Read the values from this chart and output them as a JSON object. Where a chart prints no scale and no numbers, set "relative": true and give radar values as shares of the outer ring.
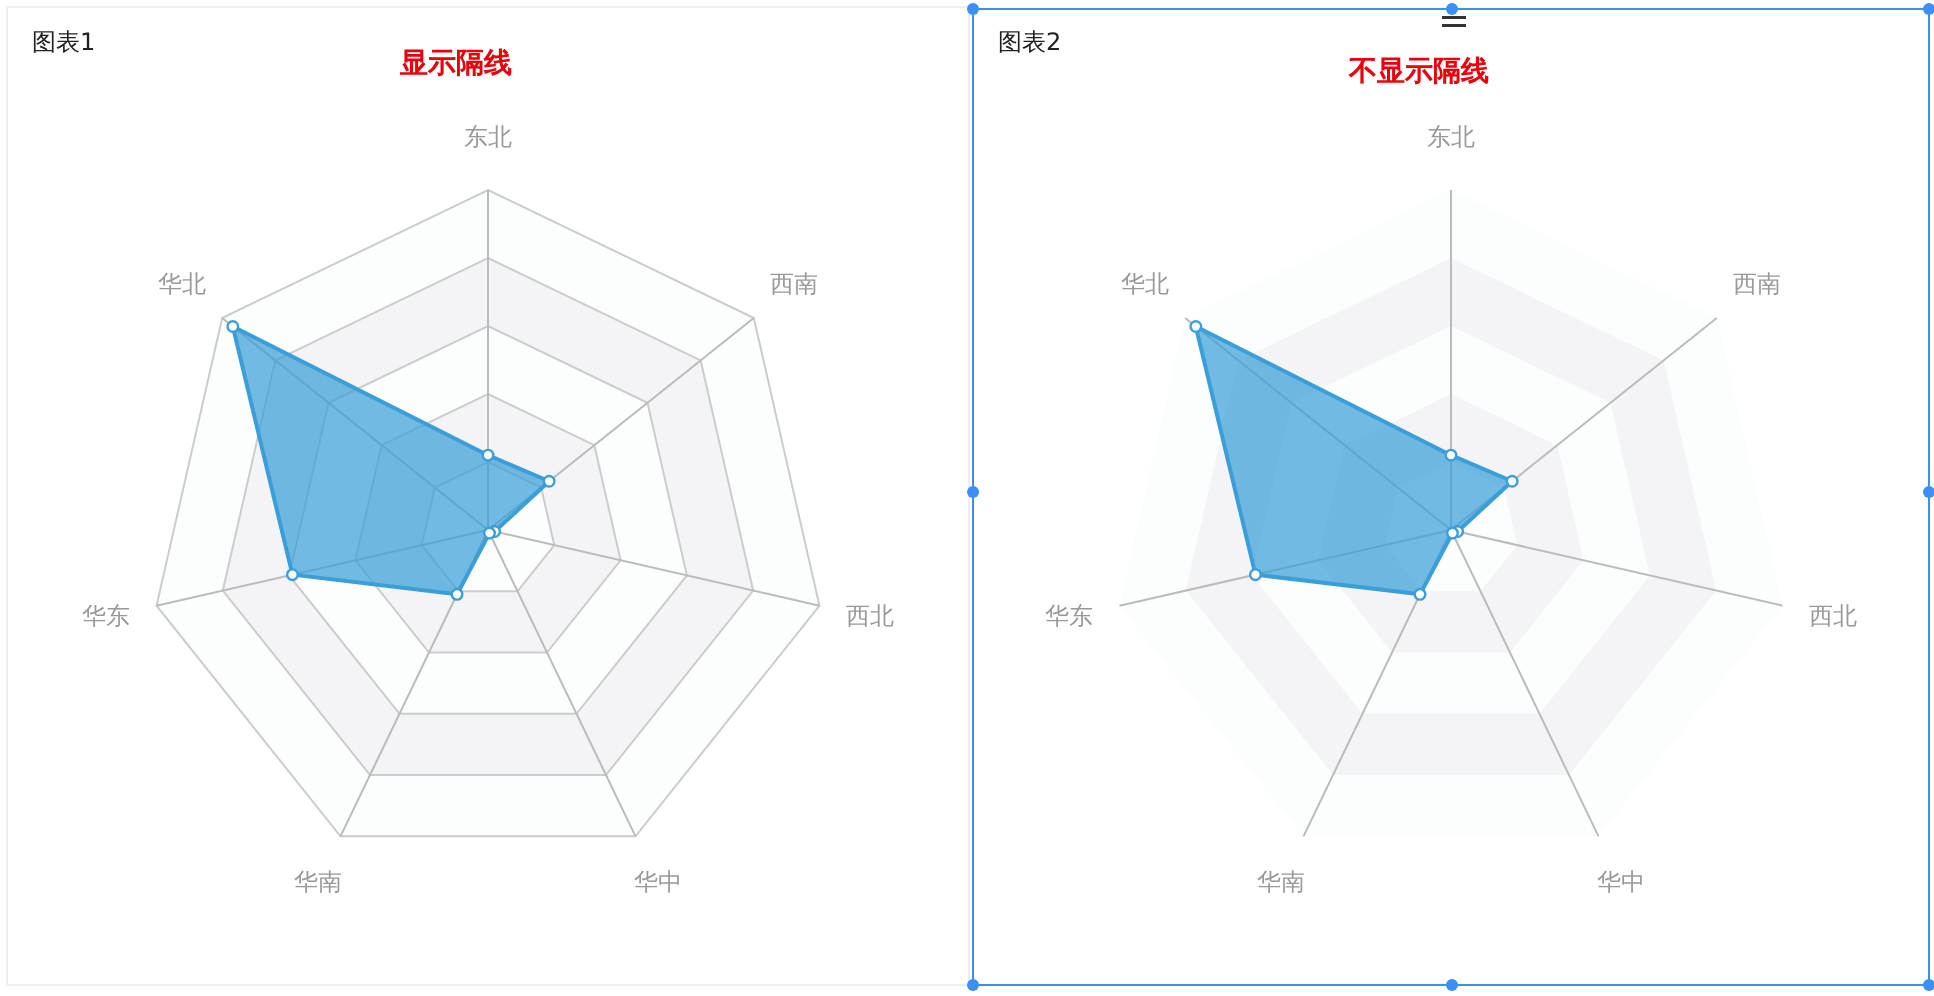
{
  "chart_data": [
    {
      "type": "radar",
      "title": "显示隔线",
      "annotations": [
        "图表1"
      ],
      "categories": [
        "东北",
        "西南",
        "西北",
        "华中",
        "华南",
        "华东",
        "华北"
      ],
      "relative": true,
      "grid": true,
      "marker": "circle",
      "series": [
        {
          "color": "#3a9fd8",
          "values": [
            0.22,
            0.23,
            0.02,
            0.01,
            0.21,
            0.59,
            0.96
          ]
        }
      ]
    },
    {
      "type": "radar",
      "title": "不显示隔线",
      "annotations": [
        "图表2"
      ],
      "categories": [
        "东北",
        "西南",
        "西北",
        "华中",
        "华南",
        "华东",
        "华北"
      ],
      "relative": true,
      "grid": false,
      "marker": "circle",
      "series": [
        {
          "color": "#3a9fd8",
          "values": [
            0.22,
            0.23,
            0.02,
            0.01,
            0.21,
            0.59,
            0.96
          ]
        }
      ]
    }
  ]
}
